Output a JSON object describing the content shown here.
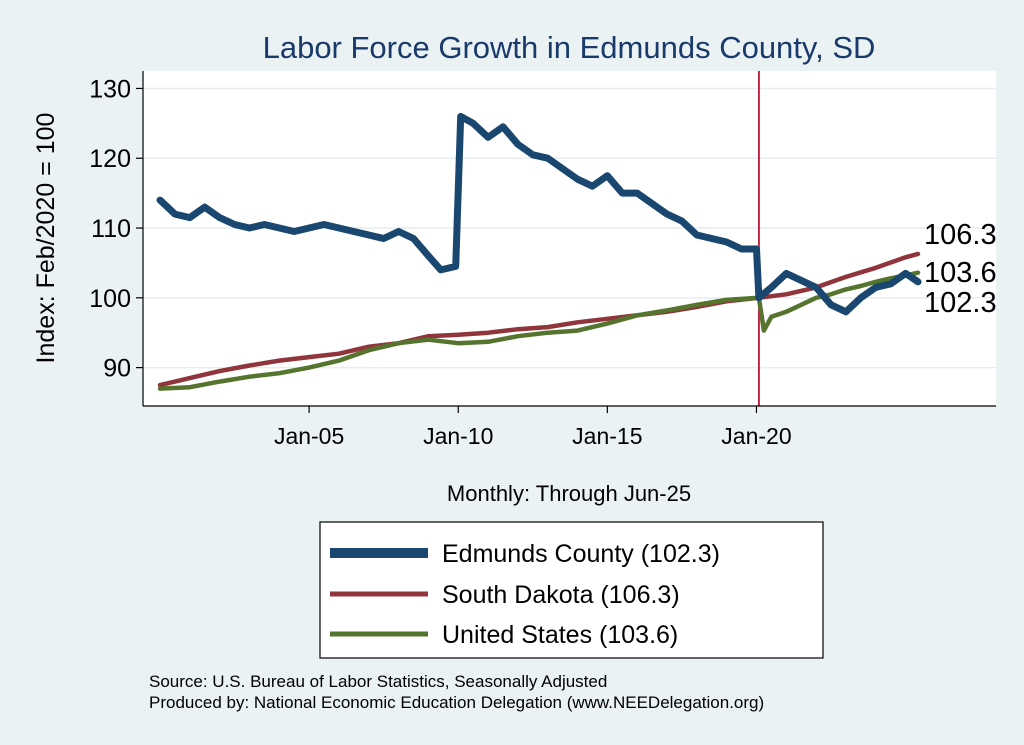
{
  "chart_data": {
    "type": "line",
    "title": "Labor Force Growth in Edmunds  County, SD",
    "xlabel": "Monthly: Through Jun-25",
    "ylabel": "Index: Feb/2020 = 100",
    "x_ticks": [
      "Jan-05",
      "Jan-10",
      "Jan-15",
      "Jan-20"
    ],
    "y_ticks": [
      90,
      100,
      110,
      120,
      130
    ],
    "xlim": [
      "Jan-00",
      "Jun-25"
    ],
    "ylim": [
      84.5,
      132.5
    ],
    "reference_line": "Feb-20",
    "end_labels": [
      "106.3",
      "103.6",
      "102.3"
    ],
    "legend": [
      "Edmunds  County (102.3)",
      "South Dakota (106.3)",
      "United States (103.6)"
    ],
    "series": [
      {
        "name": "Edmunds  County (102.3)",
        "color": "#1a476f",
        "points": [
          [
            "Jan-00",
            114
          ],
          [
            "Jul-00",
            112
          ],
          [
            "Jan-01",
            111.5
          ],
          [
            "Jul-01",
            113
          ],
          [
            "Jan-02",
            111.5
          ],
          [
            "Jul-02",
            110.5
          ],
          [
            "Jan-03",
            110
          ],
          [
            "Jul-03",
            110.5
          ],
          [
            "Jan-04",
            110
          ],
          [
            "Jul-04",
            109.5
          ],
          [
            "Jan-05",
            110
          ],
          [
            "Jul-05",
            110.5
          ],
          [
            "Jan-06",
            110
          ],
          [
            "Jul-06",
            109.5
          ],
          [
            "Jan-07",
            109
          ],
          [
            "Jul-07",
            108.5
          ],
          [
            "Jan-08",
            109.5
          ],
          [
            "Jul-08",
            108.5
          ],
          [
            "Jan-09",
            106
          ],
          [
            "Jun-09",
            104
          ],
          [
            "Dec-09",
            104.5
          ],
          [
            "Feb-10",
            126
          ],
          [
            "Jul-10",
            125
          ],
          [
            "Jan-11",
            123
          ],
          [
            "Jul-11",
            124.5
          ],
          [
            "Jan-12",
            122
          ],
          [
            "Jul-12",
            120.5
          ],
          [
            "Jan-13",
            120
          ],
          [
            "Jul-13",
            118.5
          ],
          [
            "Jan-14",
            117
          ],
          [
            "Jul-14",
            116
          ],
          [
            "Jan-15",
            117.5
          ],
          [
            "Jul-15",
            115
          ],
          [
            "Jan-16",
            115
          ],
          [
            "Jul-16",
            113.5
          ],
          [
            "Jan-17",
            112
          ],
          [
            "Jul-17",
            111
          ],
          [
            "Jan-18",
            109
          ],
          [
            "Jul-18",
            108.5
          ],
          [
            "Jan-19",
            108
          ],
          [
            "Jul-19",
            107
          ],
          [
            "Jan-20",
            107
          ],
          [
            "Feb-20",
            100
          ],
          [
            "Jul-20",
            101.5
          ],
          [
            "Jan-21",
            103.5
          ],
          [
            "Jul-21",
            102.5
          ],
          [
            "Jan-22",
            101.5
          ],
          [
            "Jul-22",
            99
          ],
          [
            "Jan-23",
            98
          ],
          [
            "Jul-23",
            100
          ],
          [
            "Jan-24",
            101.5
          ],
          [
            "Jul-24",
            102
          ],
          [
            "Jan-25",
            103.5
          ],
          [
            "Jun-25",
            102.3
          ]
        ]
      },
      {
        "name": "South Dakota (106.3)",
        "color": "#90353b",
        "points": [
          [
            "Jan-00",
            87.5
          ],
          [
            "Jan-01",
            88.5
          ],
          [
            "Jan-02",
            89.5
          ],
          [
            "Jan-03",
            90.3
          ],
          [
            "Jan-04",
            91
          ],
          [
            "Jan-05",
            91.5
          ],
          [
            "Jan-06",
            92
          ],
          [
            "Jan-07",
            93
          ],
          [
            "Jan-08",
            93.5
          ],
          [
            "Jan-09",
            94.5
          ],
          [
            "Jan-10",
            94.7
          ],
          [
            "Jan-11",
            95
          ],
          [
            "Jan-12",
            95.5
          ],
          [
            "Jan-13",
            95.8
          ],
          [
            "Jan-14",
            96.5
          ],
          [
            "Jan-15",
            97
          ],
          [
            "Jan-16",
            97.5
          ],
          [
            "Jan-17",
            98
          ],
          [
            "Jan-18",
            98.7
          ],
          [
            "Jan-19",
            99.5
          ],
          [
            "Feb-20",
            100
          ],
          [
            "Jan-21",
            100.5
          ],
          [
            "Jan-22",
            101.5
          ],
          [
            "Jan-23",
            103
          ],
          [
            "Jan-24",
            104.3
          ],
          [
            "Jan-25",
            105.8
          ],
          [
            "Jun-25",
            106.3
          ]
        ]
      },
      {
        "name": "United States (103.6)",
        "color": "#55752f",
        "points": [
          [
            "Jan-00",
            87
          ],
          [
            "Jan-01",
            87.2
          ],
          [
            "Jan-02",
            88
          ],
          [
            "Jan-03",
            88.7
          ],
          [
            "Jan-04",
            89.2
          ],
          [
            "Jan-05",
            90
          ],
          [
            "Jan-06",
            91
          ],
          [
            "Jan-07",
            92.5
          ],
          [
            "Jan-08",
            93.5
          ],
          [
            "Jan-09",
            94
          ],
          [
            "Jan-10",
            93.5
          ],
          [
            "Jan-11",
            93.7
          ],
          [
            "Jan-12",
            94.5
          ],
          [
            "Jan-13",
            95
          ],
          [
            "Jan-14",
            95.3
          ],
          [
            "Jan-15",
            96.3
          ],
          [
            "Jan-16",
            97.5
          ],
          [
            "Jan-17",
            98.2
          ],
          [
            "Jan-18",
            99
          ],
          [
            "Jan-19",
            99.7
          ],
          [
            "Feb-20",
            100
          ],
          [
            "Apr-20",
            95.3
          ],
          [
            "Jul-20",
            97.3
          ],
          [
            "Jan-21",
            98
          ],
          [
            "Jul-21",
            99
          ],
          [
            "Jan-22",
            100
          ],
          [
            "Jul-22",
            100.5
          ],
          [
            "Jan-23",
            101.2
          ],
          [
            "Jul-23",
            101.7
          ],
          [
            "Jan-24",
            102.3
          ],
          [
            "Jul-24",
            102.8
          ],
          [
            "Jan-25",
            103.2
          ],
          [
            "Jun-25",
            103.6
          ]
        ]
      }
    ]
  },
  "footer": {
    "source": "Source: U.S. Bureau of Labor Statistics, Seasonally Adjusted",
    "produced_by": "Produced by: National Economic Education Delegation (www.NEEDelegation.org)"
  }
}
